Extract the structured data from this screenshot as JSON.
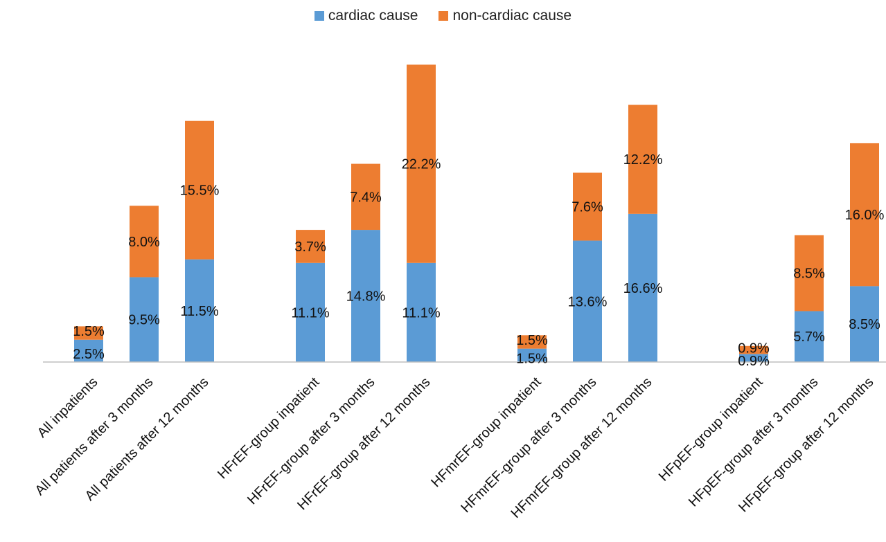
{
  "chart_data": {
    "type": "bar",
    "stacked": true,
    "categories": [
      "All inpatients",
      "All patients after 3 months",
      "All patients after 12 months",
      "HFrEF-group inpatient",
      "HFrEF-group after 3 months",
      "HFrEF-group after 12 months",
      "HFmrEF-group inpatient",
      "HFmrEF-group after 3 months",
      "HFmrEF-group after 12 months",
      "HFpEF-group inpatient",
      "HFpEF-group after 3 months",
      "HFpEF-group after 12 months"
    ],
    "groups": [
      [
        0,
        1,
        2
      ],
      [
        3,
        4,
        5
      ],
      [
        6,
        7,
        8
      ],
      [
        9,
        10,
        11
      ]
    ],
    "series": [
      {
        "name": "cardiac cause",
        "color": "#5B9BD5",
        "values": [
          2.5,
          9.5,
          11.5,
          11.1,
          14.8,
          11.1,
          1.5,
          13.6,
          16.6,
          0.9,
          5.7,
          8.5
        ],
        "labels": [
          "2.5%",
          "9.5%",
          "11.5%",
          "11.1%",
          "14.8%",
          "11.1%",
          "1.5%",
          "13.6%",
          "16.6%",
          "0.9%",
          "5.7%",
          "8.5%"
        ]
      },
      {
        "name": "non-cardiac cause",
        "color": "#ED7D31",
        "values": [
          1.5,
          8.0,
          15.5,
          3.7,
          7.4,
          22.2,
          1.5,
          7.6,
          12.2,
          0.9,
          8.5,
          16.0
        ],
        "labels": [
          "1.5%",
          "8.0%",
          "15.5%",
          "3.7%",
          "7.4%",
          "22.2%",
          "1.5%",
          "7.6%",
          "12.2%",
          "0.9%",
          "8.5%",
          "16.0%"
        ]
      }
    ],
    "ylim": [
      0,
      34
    ],
    "grid": false,
    "legend_position": "top-center"
  }
}
